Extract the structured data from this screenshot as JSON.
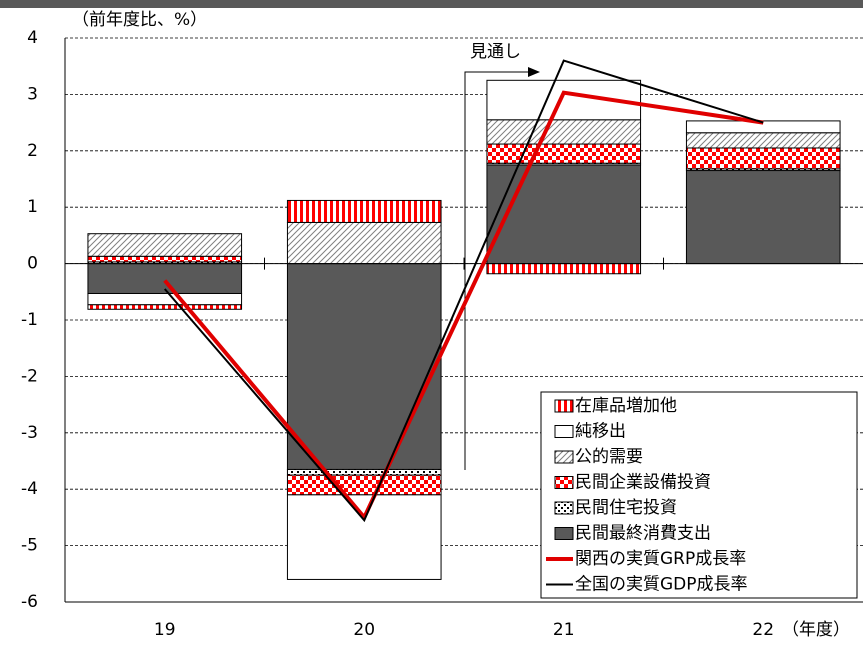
{
  "chart_data": {
    "type": "bar",
    "y_axis_label": "（前年度比、%）",
    "x_axis_label": "（年度）",
    "annotation": "見通し",
    "categories": [
      "19",
      "20",
      "21",
      "22"
    ],
    "ylim": [
      -6,
      4
    ],
    "yticks": [
      -6,
      -5,
      -4,
      -3,
      -2,
      -1,
      0,
      1,
      2,
      3,
      4
    ],
    "grid": true,
    "legend": "lower-right",
    "series": [
      {
        "name": "民間最終消費支出",
        "type": "bar",
        "color": "#595959",
        "pattern": "solid",
        "values": [
          -0.53,
          -3.65,
          1.75,
          1.65
        ]
      },
      {
        "name": "民間住宅投資",
        "type": "bar",
        "color": "#000000",
        "pattern": "dots",
        "values": [
          0.03,
          -0.1,
          0.03,
          0.03
        ]
      },
      {
        "name": "民間企業設備投資",
        "type": "bar",
        "color": "#ff0000",
        "pattern": "checker",
        "values": [
          0.1,
          -0.35,
          0.34,
          0.37
        ]
      },
      {
        "name": "公的需要",
        "type": "bar",
        "color": "#808080",
        "pattern": "diagonal-hatch",
        "values": [
          0.4,
          0.73,
          0.43,
          0.27
        ]
      },
      {
        "name": "純移出",
        "type": "bar",
        "color": "#ffffff",
        "pattern": "solid",
        "values": [
          -0.2,
          -1.5,
          0.7,
          0.21
        ]
      },
      {
        "name": "在庫品増加他",
        "type": "bar",
        "color": "#ff0000",
        "pattern": "vertical-stripes",
        "values": [
          -0.08,
          0.39,
          -0.18,
          0
        ]
      },
      {
        "name": "関西の実質GRP成長率",
        "type": "line",
        "color": "#e00000",
        "values": [
          -0.3,
          -4.5,
          3.03,
          2.5
        ]
      },
      {
        "name": "全国の実質GDP成長率",
        "type": "line",
        "color": "#000000",
        "values": [
          -0.45,
          -4.55,
          3.6,
          2.5
        ]
      }
    ]
  }
}
